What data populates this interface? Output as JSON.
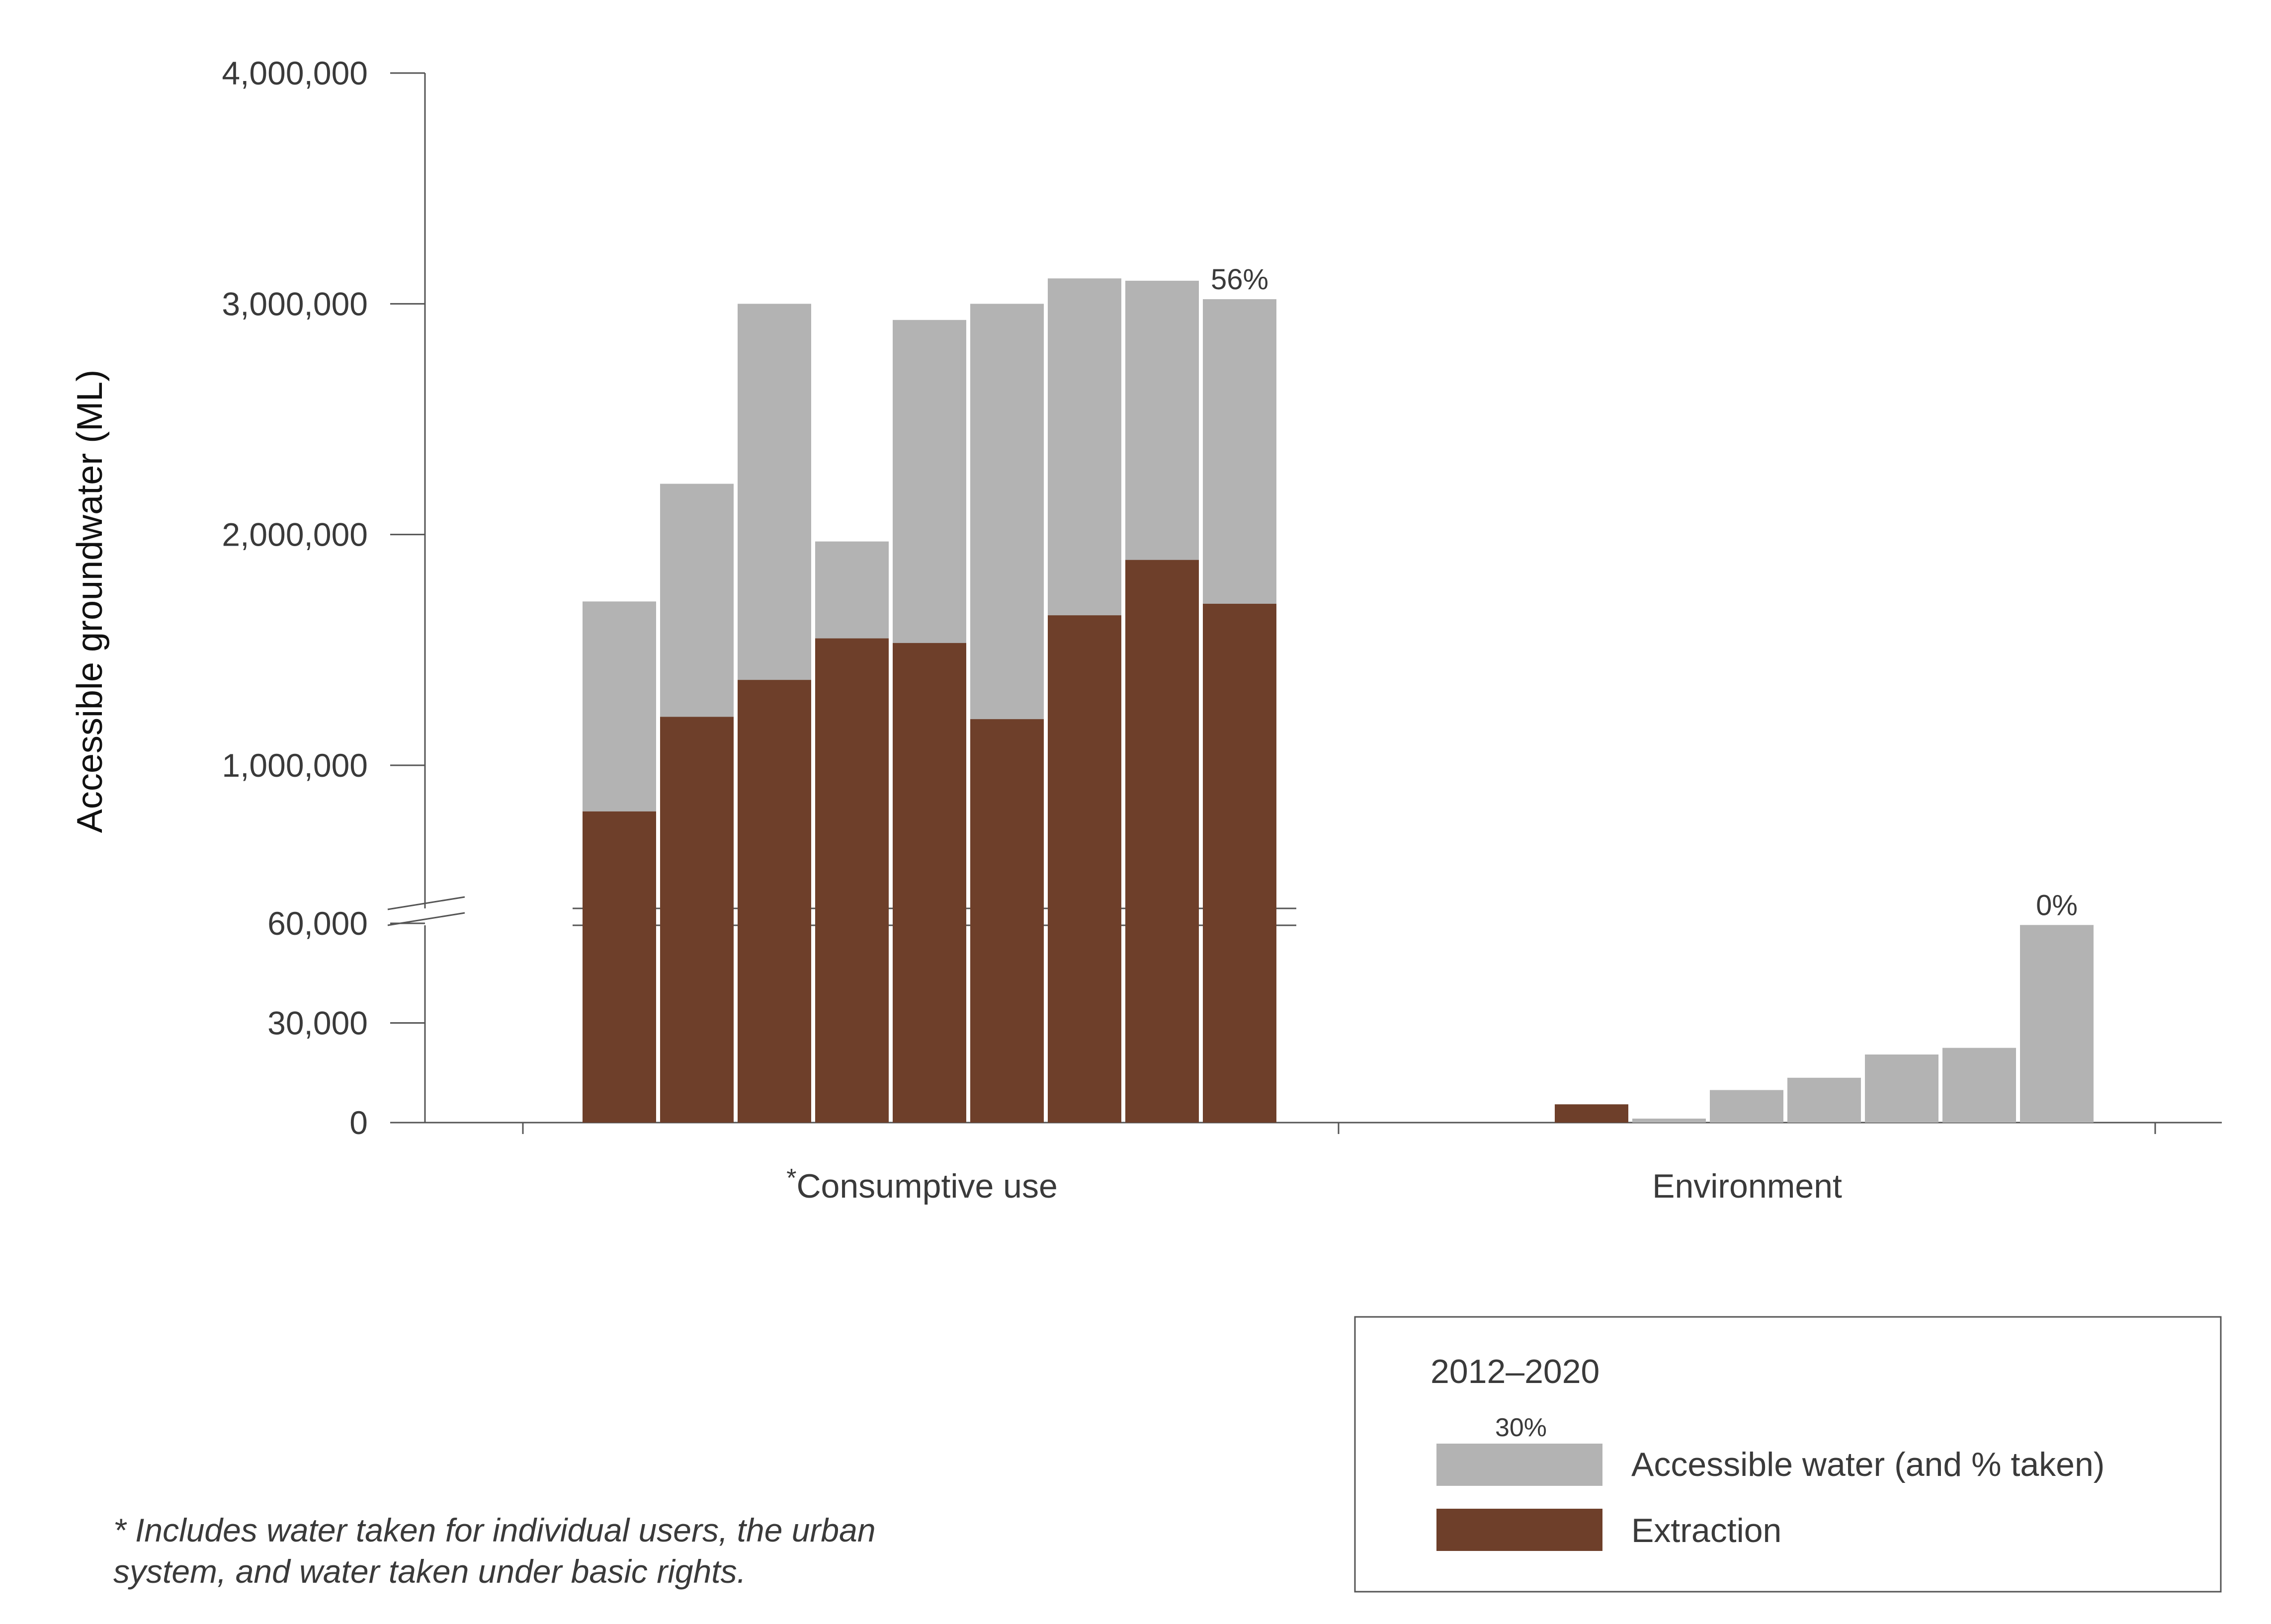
{
  "chart_data": {
    "type": "bar",
    "stacked": "overlay",
    "ylabel": "Accessible groundwater (ML)",
    "categories": [
      "Consumptive use",
      "Environment"
    ],
    "category_markers": [
      "*",
      ""
    ],
    "broken_axis": true,
    "ylim_lower": [
      0,
      70000
    ],
    "ylim_upper": [
      400000,
      4000000
    ],
    "yticks_lower": [
      {
        "value": 0,
        "label": "0"
      },
      {
        "value": 30000,
        "label": "30,000"
      },
      {
        "value": 60000,
        "label": "60,000"
      }
    ],
    "yticks_upper": [
      {
        "value": 1000000,
        "label": "1,000,000"
      },
      {
        "value": 2000000,
        "label": "2,000,000"
      },
      {
        "value": 3000000,
        "label": "3,000,000"
      },
      {
        "value": 4000000,
        "label": "4,000,000"
      }
    ],
    "groups": [
      {
        "category": "Consumptive use",
        "accessible": [
          1710000,
          2220000,
          3000000,
          1970000,
          2930000,
          3000000,
          3110000,
          3100000,
          3020000
        ],
        "extraction": [
          800000,
          1210000,
          1370000,
          1550000,
          1530000,
          1200000,
          1650000,
          1890000,
          1700000
        ],
        "last_label": "56%"
      },
      {
        "category": "Environment",
        "accessible": [
          0,
          1200,
          9800,
          13500,
          20500,
          22500,
          59500
        ],
        "extraction": [
          5500,
          0,
          0,
          0,
          0,
          0,
          0
        ],
        "last_label": "0%"
      }
    ],
    "series": [
      {
        "name": "Accessible water (and % taken)",
        "color": "#b3b3b3"
      },
      {
        "name": "Extraction",
        "color": "#6e3f2a"
      }
    ],
    "legend": {
      "title": "2012–2020",
      "example_pct": "30%",
      "placement": "bottom-right"
    }
  },
  "footnote": {
    "line1": "* Includes water taken for individual users, the urban",
    "line2": "system, and water taken under basic rights."
  }
}
